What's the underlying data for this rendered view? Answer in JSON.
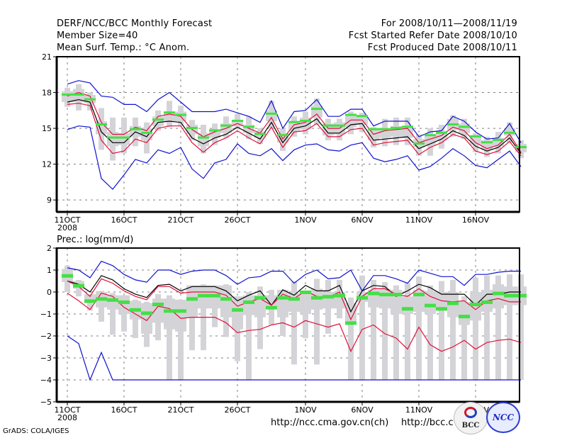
{
  "header": {
    "left": [
      "DERF/NCC/BCC Monthly Forecast",
      "Member Size=40",
      "Mean Surf. Temp.: °C Anom."
    ],
    "right": [
      "For 2008/10/11—2008/11/19",
      "Fcst Started Refer Date 2008/10/10",
      "Fcst Produced Date 2008/10/11"
    ]
  },
  "prec_label": "Prec.: log(mm/d)",
  "footer": {
    "grads": "GrADS: COLA/IGES",
    "url1": "http://ncc.cma.gov.cn(ch)",
    "url2": "http://bcc.c",
    "logo_bcc": "BCC",
    "logo_ncc": "NCC"
  },
  "colors": {
    "max_min": "#1010d0",
    "spread": "#e0103a",
    "ensemble_mean": "#000000",
    "box": "#d4d4d8",
    "median": "#44e044",
    "grid": "#808080"
  },
  "chart_data": [
    {
      "type": "line",
      "title": "Mean Surf. Temp.: °C Anom.",
      "xlabel": "",
      "ylabel": "",
      "x_start": "2008-10-11",
      "days": 40,
      "x_tick_labels": [
        "11OCT\n2008",
        "16OCT",
        "21OCT",
        "26OCT",
        "1NOV",
        "6NOV",
        "11NOV",
        "16NOV"
      ],
      "x_tick_days": [
        0,
        5,
        10,
        15,
        21,
        26,
        31,
        36
      ],
      "y_ticks": [
        9,
        12,
        15,
        18,
        21
      ],
      "ylim": [
        8,
        21
      ],
      "grid": true,
      "series": [
        {
          "name": "max",
          "color": "max_min",
          "values": [
            18.7,
            19.0,
            18.8,
            17.7,
            17.6,
            17.0,
            17.0,
            16.4,
            17.4,
            18.0,
            17.2,
            16.4,
            16.4,
            16.4,
            16.6,
            16.3,
            16.0,
            15.5,
            17.3,
            15.0,
            16.4,
            16.5,
            17.4,
            16.0,
            16.0,
            16.6,
            16.6,
            15.2,
            15.6,
            15.6,
            15.6,
            14.3,
            14.7,
            14.8,
            16.0,
            15.6,
            14.7,
            14.1,
            14.2,
            15.4,
            13.8
          ]
        },
        {
          "name": "upper",
          "color": "spread",
          "values": [
            17.7,
            18.0,
            17.7,
            15.5,
            14.5,
            14.5,
            15.1,
            14.8,
            16.0,
            16.2,
            16.0,
            14.9,
            14.3,
            14.7,
            15.0,
            15.4,
            15.0,
            14.6,
            15.9,
            14.1,
            15.3,
            15.5,
            16.2,
            15.0,
            15.0,
            15.7,
            15.7,
            14.5,
            14.8,
            14.9,
            15.0,
            13.8,
            14.1,
            14.4,
            15.1,
            14.8,
            13.8,
            13.3,
            13.6,
            14.5,
            13.0
          ]
        },
        {
          "name": "mean",
          "color": "ensemble_mean",
          "values": [
            17.2,
            17.4,
            17.2,
            14.7,
            13.8,
            13.8,
            14.7,
            14.3,
            15.5,
            15.6,
            15.5,
            14.2,
            13.7,
            14.2,
            14.5,
            15.1,
            14.6,
            14.1,
            15.5,
            13.8,
            15.0,
            15.2,
            15.8,
            14.6,
            14.6,
            15.3,
            15.4,
            14.0,
            14.1,
            14.2,
            14.3,
            13.3,
            13.7,
            14.1,
            14.8,
            14.4,
            13.5,
            13.1,
            13.4,
            14.2,
            12.9
          ]
        },
        {
          "name": "lower",
          "color": "spread",
          "values": [
            17.0,
            17.1,
            16.9,
            14.0,
            12.9,
            13.1,
            14.1,
            13.8,
            15.0,
            15.2,
            15.2,
            13.8,
            13.0,
            13.8,
            14.2,
            14.8,
            14.2,
            13.7,
            15.1,
            13.4,
            14.7,
            14.8,
            15.4,
            14.3,
            14.3,
            14.9,
            15.0,
            13.6,
            13.8,
            13.9,
            14.0,
            12.8,
            13.4,
            13.8,
            14.5,
            14.2,
            13.1,
            12.8,
            13.1,
            13.9,
            12.7
          ]
        },
        {
          "name": "min",
          "color": "max_min",
          "values": [
            14.9,
            15.2,
            15.1,
            10.8,
            9.9,
            11.1,
            12.4,
            12.1,
            13.2,
            12.9,
            13.4,
            11.6,
            10.8,
            12.1,
            12.4,
            13.7,
            12.9,
            12.7,
            13.3,
            12.3,
            13.2,
            13.6,
            13.7,
            13.2,
            13.1,
            13.6,
            13.8,
            12.5,
            12.2,
            12.4,
            12.7,
            11.5,
            11.8,
            12.5,
            13.3,
            12.7,
            11.9,
            11.7,
            12.4,
            13.1,
            11.8
          ]
        }
      ],
      "boxes": {
        "outer_low": [
          16.8,
          16.5,
          16.5,
          13.2,
          12.3,
          12.9,
          13.5,
          12.9,
          14.8,
          15.1,
          15.2,
          14.0,
          12.9,
          13.6,
          14.2,
          14.9,
          14.1,
          13.7,
          15.0,
          13.1,
          14.3,
          14.5,
          15.3,
          14.0,
          14.0,
          14.5,
          14.7,
          13.4,
          13.5,
          13.6,
          13.6,
          12.7,
          12.7,
          13.3,
          14.3,
          14.1,
          13.0,
          12.6,
          12.9,
          13.8,
          12.5
        ],
        "inner_low": [
          17.2,
          17.2,
          17.1,
          14.5,
          13.5,
          13.6,
          14.3,
          14.0,
          15.2,
          15.6,
          15.6,
          14.5,
          13.5,
          14.2,
          14.6,
          15.2,
          14.6,
          14.2,
          15.6,
          13.8,
          14.8,
          14.9,
          15.9,
          14.4,
          14.5,
          15.1,
          15.3,
          14.0,
          14.2,
          14.3,
          14.2,
          13.4,
          13.6,
          14.0,
          14.9,
          14.6,
          13.6,
          13.2,
          13.5,
          14.4,
          13.0
        ],
        "inner_high": [
          18.1,
          18.3,
          17.8,
          15.6,
          14.7,
          14.6,
          15.2,
          15.0,
          16.0,
          16.3,
          16.4,
          15.3,
          14.6,
          14.9,
          15.4,
          15.7,
          15.3,
          14.7,
          16.5,
          14.6,
          15.6,
          15.9,
          16.9,
          15.4,
          15.5,
          16.2,
          16.1,
          15.0,
          15.0,
          15.2,
          15.1,
          14.1,
          14.4,
          14.8,
          15.8,
          15.4,
          14.3,
          14.0,
          14.2,
          15.0,
          13.7
        ],
        "outer_high": [
          18.4,
          18.7,
          18.0,
          16.7,
          15.9,
          15.9,
          15.9,
          15.5,
          16.5,
          17.3,
          16.9,
          15.7,
          15.3,
          15.4,
          16.0,
          16.2,
          16.0,
          15.0,
          17.3,
          15.0,
          16.0,
          16.4,
          17.5,
          15.8,
          15.8,
          16.4,
          16.3,
          15.1,
          15.8,
          15.9,
          15.9,
          14.5,
          15.0,
          15.3,
          16.1,
          15.8,
          14.6,
          14.3,
          14.7,
          15.5,
          14.0
        ],
        "median": [
          17.8,
          17.8,
          17.4,
          15.3,
          14.2,
          14.2,
          14.9,
          14.6,
          15.7,
          16.3,
          16.1,
          15.0,
          14.2,
          14.8,
          15.2,
          15.6,
          15.1,
          14.5,
          16.2,
          14.4,
          15.5,
          15.6,
          16.6,
          15.2,
          15.2,
          16.1,
          16.0,
          14.9,
          14.9,
          15.0,
          15.1,
          13.7,
          14.4,
          14.6,
          15.3,
          15.1,
          14.3,
          13.8,
          14.0,
          14.6,
          13.4
        ]
      }
    },
    {
      "type": "line",
      "title": "Prec.: log(mm/d)",
      "xlabel": "",
      "ylabel": "",
      "x_start": "2008-10-11",
      "days": 40,
      "x_tick_labels": [
        "11OCT\n2008",
        "16OCT",
        "21OCT",
        "26OCT",
        "1NOV",
        "6NOV",
        "11NOV",
        "16NOV"
      ],
      "x_tick_days": [
        0,
        5,
        10,
        15,
        21,
        26,
        31,
        36
      ],
      "y_ticks": [
        -5,
        -4,
        -3,
        -2,
        -1,
        0,
        1,
        2
      ],
      "ylim": [
        -5,
        2
      ],
      "grid": true,
      "series": [
        {
          "name": "max",
          "color": "max_min",
          "values": [
            1.1,
            1.0,
            0.65,
            1.4,
            1.2,
            0.8,
            0.55,
            0.45,
            1.0,
            1.0,
            0.8,
            0.95,
            1.0,
            1.0,
            0.75,
            0.35,
            0.65,
            0.7,
            0.95,
            0.95,
            0.4,
            0.8,
            1.0,
            0.6,
            0.65,
            1.0,
            0.05,
            0.75,
            0.75,
            0.6,
            0.4,
            1.0,
            0.85,
            0.7,
            0.7,
            0.3,
            0.8,
            0.8,
            0.9,
            0.95,
            0.95
          ]
        },
        {
          "name": "mean",
          "color": "ensemble_mean",
          "values": [
            0.5,
            0.35,
            0.0,
            0.75,
            0.55,
            0.15,
            -0.1,
            -0.25,
            0.3,
            0.35,
            0.05,
            0.25,
            0.25,
            0.25,
            0.05,
            -0.4,
            -0.15,
            0.05,
            -0.6,
            0.1,
            -0.15,
            0.3,
            0.05,
            0.05,
            0.3,
            -0.9,
            0.05,
            0.3,
            0.25,
            -0.2,
            0.05,
            0.35,
            0.2,
            -0.1,
            -0.1,
            -0.1,
            -0.6,
            -0.1,
            -0.1,
            0.0,
            0.0
          ]
        },
        {
          "name": "upper",
          "color": "spread",
          "values": [
            0.5,
            0.25,
            -0.2,
            0.6,
            0.4,
            0.05,
            -0.2,
            -0.35,
            0.25,
            0.25,
            -0.05,
            0.0,
            0.0,
            0.0,
            -0.15,
            -0.65,
            -0.45,
            -0.3,
            -0.6,
            -0.1,
            -0.3,
            0.05,
            -0.2,
            -0.25,
            0.0,
            -1.25,
            -0.2,
            0.15,
            0.15,
            -0.1,
            -0.2,
            0.15,
            -0.2,
            -0.4,
            -0.45,
            -0.4,
            -0.8,
            -0.4,
            -0.3,
            -0.45,
            -0.45
          ]
        },
        {
          "name": "lower",
          "color": "spread",
          "values": [
            -0.05,
            -0.4,
            -0.8,
            -0.05,
            -0.2,
            -0.7,
            -1.0,
            -1.3,
            -0.65,
            -0.75,
            -1.2,
            -1.15,
            -1.15,
            -1.15,
            -1.4,
            -1.85,
            -1.75,
            -1.7,
            -1.5,
            -1.4,
            -1.6,
            -1.3,
            -1.45,
            -1.6,
            -1.45,
            -2.7,
            -1.7,
            -1.5,
            -1.9,
            -2.1,
            -2.6,
            -1.6,
            -2.4,
            -2.7,
            -2.5,
            -2.2,
            -2.6,
            -2.3,
            -2.2,
            -2.15,
            -2.3
          ]
        },
        {
          "name": "min",
          "color": "max_min",
          "values": [
            -2.0,
            -2.35,
            -4.0,
            -2.75,
            -4.0,
            -4.0,
            -4.0,
            -4.0,
            -4.0,
            -4.0,
            -4.0,
            -4.0,
            -4.0,
            -4.0,
            -4.0,
            -4.0,
            -4.0,
            -4.0,
            -4.0,
            -4.0,
            -4.0,
            -4.0,
            -4.0,
            -4.0,
            -4.0,
            -4.0,
            -4.0,
            -4.0,
            -4.0,
            -4.0,
            -4.0,
            -4.0,
            -4.0,
            -4.0,
            -4.0,
            -4.0,
            -4.0,
            -4.0,
            -4.0,
            -4.0,
            -4.0
          ]
        }
      ],
      "boxes": {
        "outer_low": [
          0.0,
          -0.2,
          -0.85,
          -1.35,
          -1.95,
          -1.8,
          -2.1,
          -2.5,
          -2.2,
          -4.0,
          -4.0,
          -2.65,
          -2.65,
          -1.6,
          -2.05,
          -3.15,
          -4.0,
          -2.6,
          -1.5,
          -2.0,
          -3.3,
          -2.1,
          -3.3,
          -1.9,
          -1.2,
          -4.0,
          -4.0,
          -4.0,
          -4.0,
          -4.0,
          -4.0,
          -4.0,
          -4.0,
          -4.0,
          -4.0,
          -4.0,
          -4.0,
          -4.0,
          -4.0,
          -4.0,
          -4.0
        ],
        "inner_low": [
          0.45,
          0.15,
          -0.5,
          -0.7,
          -0.8,
          -1.0,
          -1.25,
          -1.9,
          -1.4,
          -1.7,
          -1.8,
          -1.15,
          -0.75,
          -0.75,
          -1.15,
          -1.7,
          -1.05,
          -1.15,
          -0.7,
          -1.15,
          -0.9,
          -1.0,
          -0.8,
          -0.75,
          -0.75,
          -1.4,
          -0.45,
          -0.7,
          -0.75,
          -1.0,
          -1.0,
          -0.9,
          -1.0,
          -0.85,
          -1.15,
          -1.5,
          -1.3,
          -0.9,
          -0.75,
          -0.6,
          -0.6
        ],
        "inner_high": [
          1.05,
          0.5,
          -0.1,
          0.0,
          -0.15,
          -0.15,
          -0.4,
          -0.5,
          -0.3,
          -0.3,
          -0.35,
          0.3,
          0.3,
          0.3,
          0.3,
          -0.2,
          -0.15,
          -0.15,
          -0.15,
          0.1,
          -0.05,
          0.0,
          0.15,
          0.0,
          0.0,
          -0.5,
          0.0,
          0.1,
          0.15,
          0.1,
          -0.2,
          0.1,
          0.05,
          0.0,
          0.0,
          -0.45,
          0.0,
          0.1,
          0.35,
          0.25,
          0.25
        ],
        "outer_high": [
          1.2,
          0.55,
          -0.2,
          0.05,
          -0.05,
          -0.15,
          -0.35,
          -0.45,
          -0.1,
          -0.15,
          -0.35,
          0.3,
          0.35,
          0.3,
          0.35,
          -0.2,
          0.0,
          0.25,
          0.1,
          0.1,
          0.5,
          0.05,
          0.6,
          0.55,
          0.55,
          -0.25,
          0.75,
          0.55,
          0.45,
          0.3,
          0.4,
          0.7,
          0.3,
          0.5,
          0.55,
          -0.2,
          0.65,
          0.75,
          0.75,
          0.8,
          0.8
        ],
        "median": [
          0.75,
          0.3,
          -0.4,
          -0.3,
          -0.35,
          -0.45,
          -0.8,
          -0.95,
          -0.55,
          -0.85,
          -0.85,
          -0.3,
          -0.15,
          -0.15,
          -0.3,
          -0.8,
          -0.45,
          -0.25,
          -0.7,
          -0.25,
          -0.3,
          0.0,
          -0.25,
          -0.2,
          -0.15,
          -1.4,
          -0.25,
          -0.05,
          -0.1,
          -0.1,
          -0.75,
          -0.1,
          -0.6,
          -0.75,
          -0.5,
          -1.1,
          -0.55,
          -0.45,
          -0.05,
          -0.15,
          -0.15
        ]
      }
    }
  ]
}
